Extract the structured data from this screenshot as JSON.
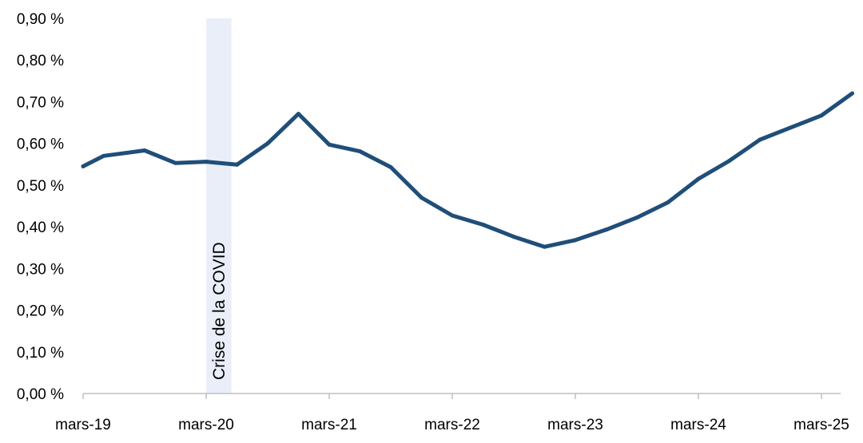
{
  "chart_data": {
    "type": "line",
    "title": "",
    "xlabel": "",
    "ylabel": "",
    "ylim": [
      0,
      0.9
    ],
    "y_ticks": [
      0,
      0.1,
      0.2,
      0.3,
      0.4,
      0.5,
      0.6,
      0.7,
      0.8,
      0.9
    ],
    "y_tick_labels": [
      "0,00 %",
      "0,10 %",
      "0,20 %",
      "0,30 %",
      "0,40 %",
      "0,50 %",
      "0,60 %",
      "0,70 %",
      "0,80 %",
      "0,90 %"
    ],
    "x_ticks": [
      "2019-03",
      "2020-03",
      "2021-03",
      "2022-03",
      "2023-03",
      "2024-03",
      "2025-03"
    ],
    "x_tick_labels": [
      "mars-19",
      "mars-20",
      "mars-21",
      "mars-22",
      "mars-23",
      "mars-24",
      "mars-25"
    ],
    "grid": false,
    "legend": "none",
    "series": [
      {
        "color": "#1f4e79",
        "points": [
          [
            "2019-03",
            0.545
          ],
          [
            "2019-05",
            0.57
          ],
          [
            "2019-09",
            0.583
          ],
          [
            "2019-12",
            0.553
          ],
          [
            "2020-03",
            0.556
          ],
          [
            "2020-06",
            0.549
          ],
          [
            "2020-09",
            0.6
          ],
          [
            "2020-12",
            0.671
          ],
          [
            "2021-03",
            0.597
          ],
          [
            "2021-06",
            0.581
          ],
          [
            "2021-09",
            0.543
          ],
          [
            "2021-12",
            0.47
          ],
          [
            "2022-03",
            0.427
          ],
          [
            "2022-06",
            0.405
          ],
          [
            "2022-09",
            0.376
          ],
          [
            "2022-12",
            0.352
          ],
          [
            "2023-03",
            0.368
          ],
          [
            "2023-06",
            0.393
          ],
          [
            "2023-09",
            0.422
          ],
          [
            "2023-12",
            0.458
          ],
          [
            "2024-03",
            0.515
          ],
          [
            "2024-06",
            0.558
          ],
          [
            "2024-09",
            0.609
          ],
          [
            "2024-12",
            0.638
          ],
          [
            "2025-03",
            0.667
          ],
          [
            "2025-06",
            0.72
          ]
        ]
      }
    ],
    "annotations": [
      {
        "type": "shaded-band",
        "x_start": "2020-03",
        "x_end": "2020-05",
        "label": "Crise de la COVID",
        "color": "#e9eef8"
      }
    ]
  }
}
